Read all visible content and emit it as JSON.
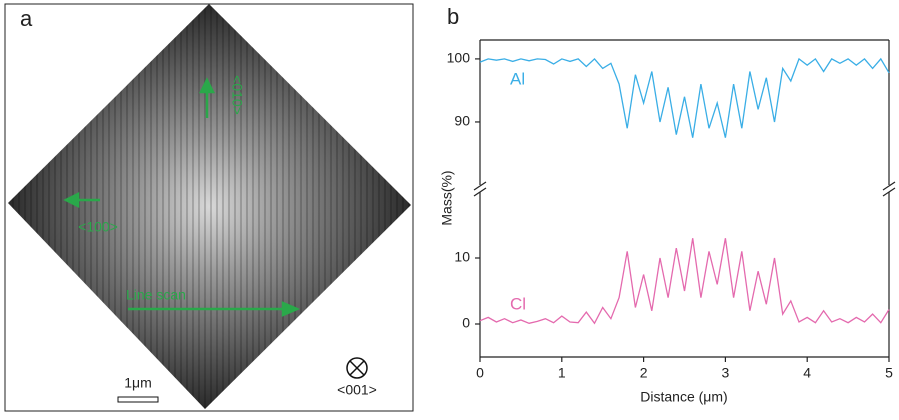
{
  "panel_a": {
    "label": "a",
    "directions": [
      "<010>",
      "<100>"
    ],
    "scan_label": "Line scan",
    "scale_bar": "1μm",
    "view_axis": "<001>"
  },
  "chart_data": {
    "type": "line",
    "panel_label": "b",
    "xlabel": "Distance (μm)",
    "ylabel": "Mass(%)",
    "xlim": [
      0,
      5
    ],
    "xticks": [
      0,
      1,
      2,
      3,
      4,
      5
    ],
    "y_segments": [
      {
        "ylim": [
          80,
          103
        ],
        "yticks": [
          90,
          100
        ]
      },
      {
        "ylim": [
          -5,
          20
        ],
        "yticks": [
          0,
          10
        ]
      }
    ],
    "x": [
      0,
      0.1,
      0.2,
      0.3,
      0.4,
      0.5,
      0.6,
      0.7,
      0.8,
      0.9,
      1,
      1.1,
      1.2,
      1.3,
      1.4,
      1.5,
      1.6,
      1.7,
      1.8,
      1.9,
      2,
      2.1,
      2.2,
      2.3,
      2.4,
      2.5,
      2.6,
      2.7,
      2.8,
      2.9,
      3,
      3.1,
      3.2,
      3.3,
      3.4,
      3.5,
      3.6,
      3.7,
      3.8,
      3.9,
      4,
      4.1,
      4.2,
      4.3,
      4.4,
      4.5,
      4.6,
      4.7,
      4.8,
      4.9,
      5
    ],
    "series": [
      {
        "name": "Al",
        "color": "#3aaee6",
        "segment": 0,
        "values": [
          99.5,
          100,
          99.8,
          100,
          99.6,
          100,
          99.7,
          100,
          99.9,
          99.2,
          100,
          99.6,
          100,
          98.8,
          100,
          98.5,
          99.3,
          96,
          89,
          97.5,
          93,
          98,
          90,
          95.5,
          88,
          94,
          87.5,
          96,
          89,
          93,
          87.5,
          96,
          89,
          98,
          92,
          97,
          90,
          98.5,
          96.5,
          100,
          99,
          100,
          98,
          100,
          99.3,
          100,
          99,
          100,
          98.5,
          100,
          97.8
        ]
      },
      {
        "name": "Cl",
        "color": "#e46aae",
        "segment": 1,
        "values": [
          0.5,
          1,
          0.3,
          0.8,
          0.2,
          0.6,
          0.1,
          0.4,
          0.8,
          0.2,
          1.2,
          0.3,
          0.2,
          1.8,
          0.1,
          2.5,
          0.8,
          4,
          11,
          2.5,
          7.5,
          2,
          10,
          4,
          11.5,
          5,
          13,
          4,
          11,
          6,
          13,
          4,
          11,
          2,
          8,
          3,
          10,
          1.5,
          3.5,
          0.3,
          1,
          0.2,
          2,
          0.3,
          0.8,
          0.2,
          1,
          0.3,
          1.5,
          0.2,
          2.2
        ]
      }
    ]
  }
}
